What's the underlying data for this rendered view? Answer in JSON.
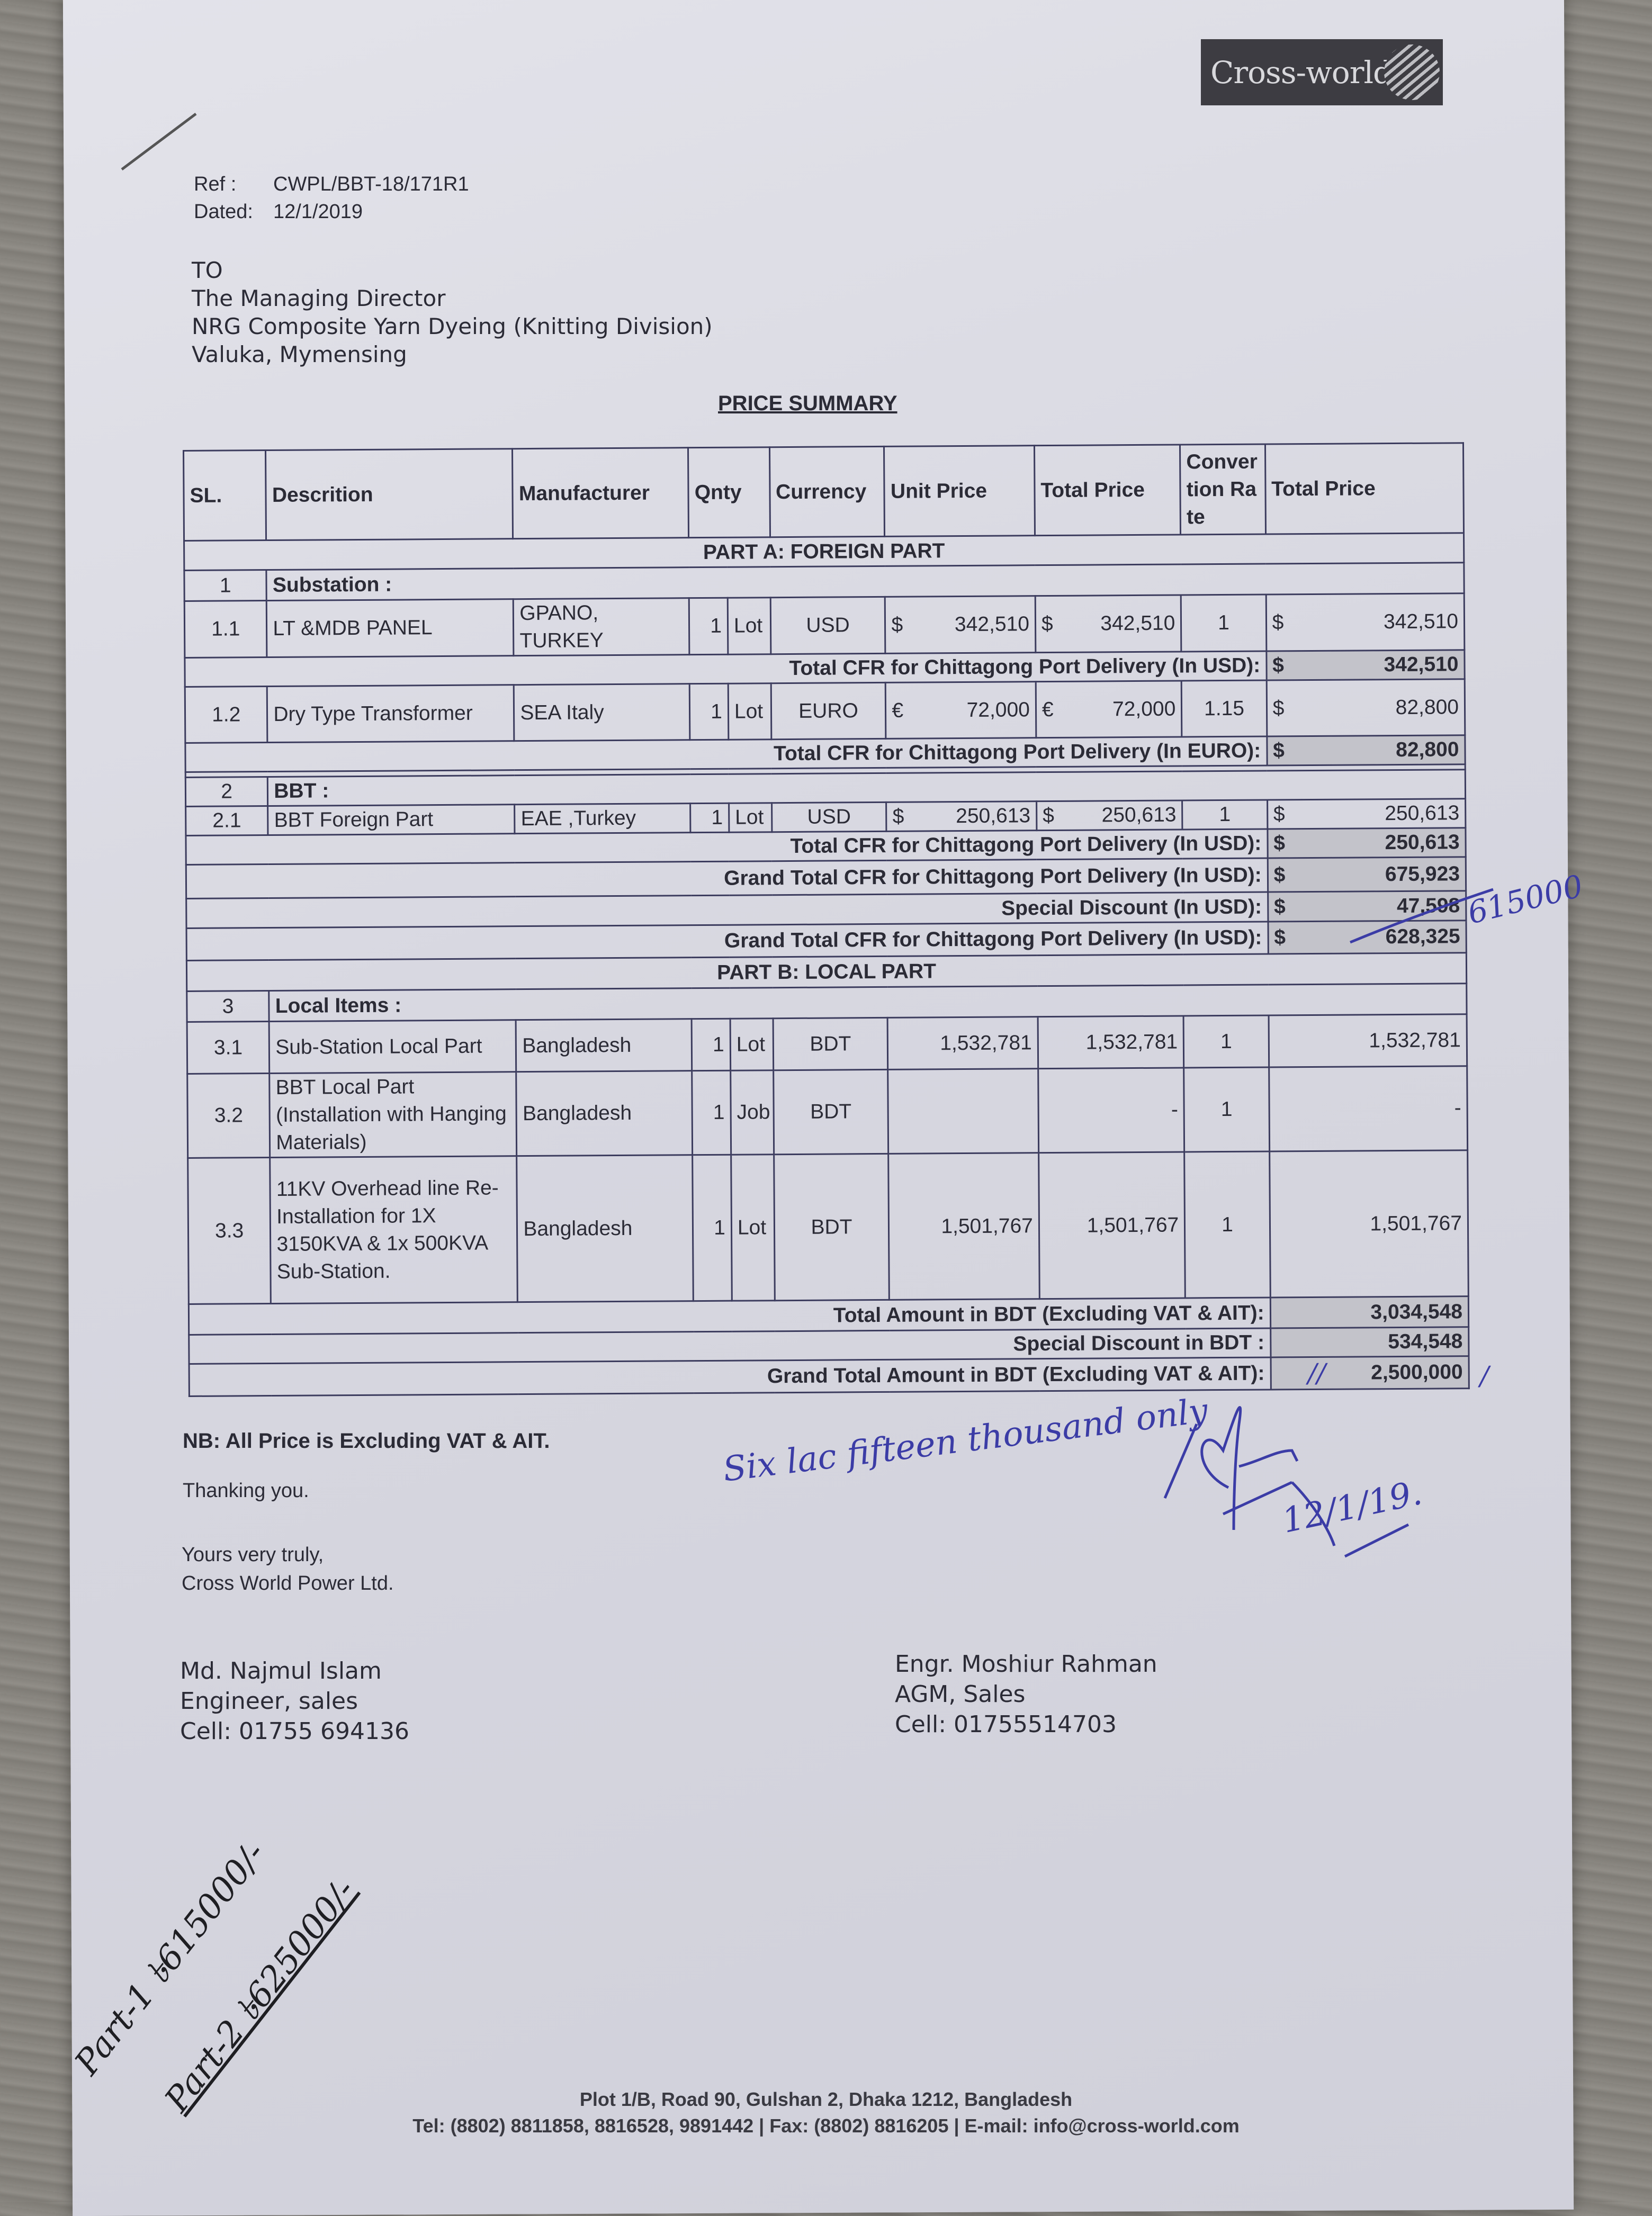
{
  "logo": {
    "text": "Cross-world"
  },
  "ref": {
    "label": "Ref :",
    "value": "CWPL/BBT-18/171R1"
  },
  "dated": {
    "label": "Dated:",
    "value": "12/1/2019"
  },
  "recipient": {
    "to": "TO",
    "lines": [
      "The Managing Director",
      "NRG Composite Yarn Dyeing (Knitting Division)",
      "Valuka, Mymensing"
    ]
  },
  "title": "PRICE SUMMARY",
  "table": {
    "headers": {
      "sl": "SL.",
      "desc": "Descrition",
      "manuf": "Manufacturer",
      "qty": "Qnty",
      "currency": "Currency",
      "unit_price": "Unit Price",
      "total_price": "Total Price",
      "rate": "Convertion Rate",
      "total": "Total Price"
    },
    "rows": [
      {
        "type": "section",
        "label": "PART A: FOREIGN PART"
      },
      {
        "type": "group",
        "sl": "1",
        "label": "Substation :"
      },
      {
        "type": "item",
        "sl": "1.1",
        "desc": "LT &MDB PANEL",
        "manuf": "GPANO, TURKEY",
        "qty": "1",
        "unit": "Lot",
        "currency": "USD",
        "unit_price": {
          "sym": "$",
          "val": "342,510"
        },
        "total_price": {
          "sym": "$",
          "val": "342,510"
        },
        "rate": "1",
        "total": {
          "sym": "$",
          "val": "342,510"
        }
      },
      {
        "type": "subtotal",
        "label": "Total CFR for Chittagong Port Delivery (In USD):",
        "sym": "$",
        "val": "342,510"
      },
      {
        "type": "item",
        "sl": "1.2",
        "desc": "Dry Type Transformer",
        "manuf": "SEA Italy",
        "qty": "1",
        "unit": "Lot",
        "currency": "EURO",
        "unit_price": {
          "sym": "€",
          "val": "72,000"
        },
        "total_price": {
          "sym": "€",
          "val": "72,000"
        },
        "rate": "1.15",
        "total": {
          "sym": "$",
          "val": "82,800"
        }
      },
      {
        "type": "subtotal",
        "label": "Total CFR for Chittagong Port Delivery (In EURO):",
        "sym": "$",
        "val": "82,800"
      },
      {
        "type": "spacer"
      },
      {
        "type": "group",
        "sl": "2",
        "label": "BBT :"
      },
      {
        "type": "item",
        "sl": "2.1",
        "desc": "BBT Foreign Part",
        "manuf": "EAE ,Turkey",
        "qty": "1",
        "unit": "Lot",
        "currency": "USD",
        "unit_price": {
          "sym": "$",
          "val": "250,613"
        },
        "total_price": {
          "sym": "$",
          "val": "250,613"
        },
        "rate": "1",
        "total": {
          "sym": "$",
          "val": "250,613"
        }
      },
      {
        "type": "subtotal",
        "label": "Total CFR for Chittagong Port Delivery (In USD):",
        "sym": "$",
        "val": "250,613"
      },
      {
        "type": "subtotal",
        "label": "Grand Total CFR for Chittagong Port Delivery (In USD):",
        "sym": "$",
        "val": "675,923"
      },
      {
        "type": "subtotal",
        "label": "Special Discount (In USD):",
        "sym": "$",
        "val": "47,598"
      },
      {
        "type": "subtotal",
        "label": "Grand Total CFR for Chittagong Port Delivery (In USD):",
        "sym": "$",
        "val": "628,325"
      },
      {
        "type": "section",
        "label": "PART B: LOCAL PART"
      },
      {
        "type": "group",
        "sl": "3",
        "label": "Local Items :"
      },
      {
        "type": "item",
        "sl": "3.1",
        "desc": "Sub-Station Local Part",
        "manuf": "Bangladesh",
        "qty": "1",
        "unit": "Lot",
        "currency": "BDT",
        "unit_price": "1,532,781",
        "total_price": "1,532,781",
        "rate": "1",
        "total": "1,532,781"
      },
      {
        "type": "item",
        "sl": "3.2",
        "desc": "BBT Local Part (Installation with Hanging Materials)",
        "manuf": "Bangladesh",
        "qty": "1",
        "unit": "Job",
        "currency": "BDT",
        "unit_price": "",
        "total_price": "-",
        "rate": "1",
        "total": "-"
      },
      {
        "type": "item",
        "sl": "3.3",
        "desc": "11KV Overhead line Re-Installation for 1X 3150KVA & 1x 500KVA Sub-Station.",
        "manuf": "Bangladesh",
        "qty": "1",
        "unit": "Lot",
        "currency": "BDT",
        "unit_price": "1,501,767",
        "total_price": "1,501,767",
        "rate": "1",
        "total": "1,501,767"
      },
      {
        "type": "subtotal",
        "label": "Total Amount in BDT (Excluding VAT & AIT):",
        "val": "3,034,548"
      },
      {
        "type": "subtotal",
        "label": "Special Discount  in BDT :",
        "val": "534,548"
      },
      {
        "type": "subtotal",
        "label": "Grand Total Amount in BDT (Excluding VAT & AIT):",
        "val": "2,500,000"
      }
    ]
  },
  "notes": {
    "nb": "NB: All Price is Excluding VAT & AIT.",
    "thanks": "Thanking you.",
    "closing": "Yours very truly,",
    "company": "Cross World Power Ltd."
  },
  "signatories": [
    {
      "name": "Md. Najmul Islam",
      "title": "Engineer, sales",
      "cell": "Cell: 01755 694136"
    },
    {
      "name": "Engr. Moshiur Rahman",
      "title": "AGM, Sales",
      "cell": "Cell: 01755514703"
    }
  ],
  "footer": {
    "address": "Plot 1/B, Road 90, Gulshan 2, Dhaka 1212, Bangladesh",
    "contact": "Tel: (8802) 8811858, 8816528, 9891442 | Fax: (8802) 8816205 | E-mail: info@cross-world.com"
  },
  "handwriting": {
    "revised_total": "615000",
    "amount_words": "Six lac fifteen thousand only",
    "sign_date": "12/1/19.",
    "part1": "Part-1 ৳615000/-",
    "part2": "Part-2 ৳625000/-"
  },
  "colors": {
    "ink_blue": "#3b3ca6",
    "table_border": "#3c3c5e",
    "shade": "#c3c3ca",
    "logo_bg": "#3d3c42"
  }
}
